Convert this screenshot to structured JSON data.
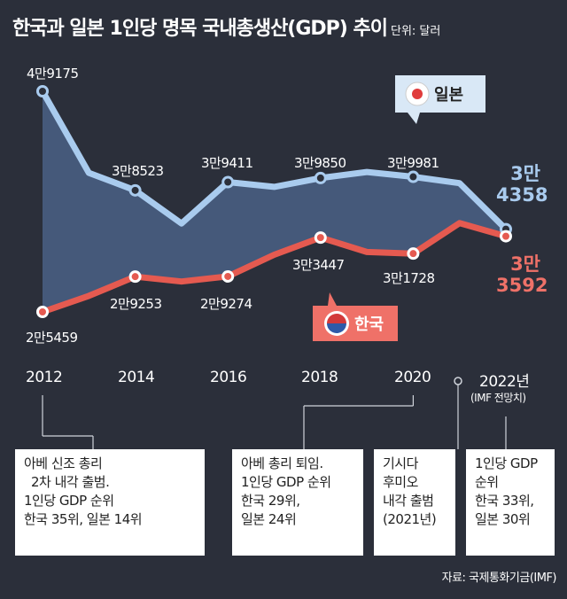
{
  "title": "한국과 일본 1인당 명목 국내총생산(GDP) 추이",
  "unit_label": "단위: 달러",
  "source": "자료: 국제통화기금(IMF)",
  "chart_data": {
    "type": "line",
    "x": [
      2012,
      2013,
      2014,
      2015,
      2016,
      2017,
      2018,
      2019,
      2020,
      2021,
      2022
    ],
    "x_tick_labels": [
      "2012",
      "2014",
      "2016",
      "2018",
      "2020",
      "2022년"
    ],
    "forecast_note": "(IMF 전망치)",
    "series": [
      {
        "name": "일본",
        "color": "#a9cbee",
        "values": [
          49175,
          40400,
          38523,
          34960,
          39411,
          38900,
          39850,
          40500,
          39981,
          39300,
          34358
        ]
      },
      {
        "name": "한국",
        "color": "#e55a50",
        "values": [
          25459,
          27180,
          29253,
          28730,
          29274,
          31600,
          33447,
          31900,
          31728,
          35000,
          33592
        ]
      }
    ],
    "data_labels": [
      {
        "series": "일본",
        "x": 2012,
        "text": "4만9175"
      },
      {
        "series": "일본",
        "x": 2014,
        "text": "3만8523"
      },
      {
        "series": "일본",
        "x": 2016,
        "text": "3만9411"
      },
      {
        "series": "일본",
        "x": 2018,
        "text": "3만9850"
      },
      {
        "series": "일본",
        "x": 2020,
        "text": "3만9981"
      },
      {
        "series": "일본",
        "x": 2022,
        "text": "3만 4358"
      },
      {
        "series": "한국",
        "x": 2012,
        "text": "2만5459"
      },
      {
        "series": "한국",
        "x": 2014,
        "text": "2만9253"
      },
      {
        "series": "한국",
        "x": 2016,
        "text": "2만9274"
      },
      {
        "series": "한국",
        "x": 2018,
        "text": "3만3447"
      },
      {
        "series": "한국",
        "x": 2020,
        "text": "3만1728"
      },
      {
        "series": "한국",
        "x": 2022,
        "text": "3만 3592"
      }
    ],
    "final_labels": {
      "japan": [
        "3만",
        "4358"
      ],
      "korea": [
        "3만",
        "3592"
      ]
    },
    "legend": {
      "japan": "일본",
      "korea": "한국"
    },
    "fill_between": true,
    "grid": false
  },
  "notes": [
    {
      "lines": [
        "아베 신조 총리",
        "2차 내각 출범.",
        "1인당 GDP 순위",
        "한국 35위, 일본 14위"
      ]
    },
    {
      "lines": [
        "아베 총리 퇴임.",
        "1인당 GDP 순위",
        "한국 29위,",
        "일본 24위"
      ]
    },
    {
      "lines": [
        "기시다",
        "후미오",
        "내각 출범",
        "(2021년)"
      ]
    },
    {
      "lines": [
        "1인당 GDP",
        "순위",
        "한국 33위,",
        "일본 30위"
      ]
    }
  ]
}
